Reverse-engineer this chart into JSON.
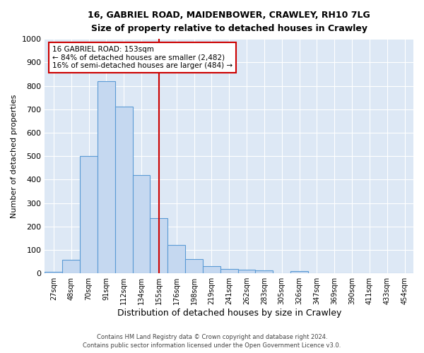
{
  "title1": "16, GABRIEL ROAD, MAIDENBOWER, CRAWLEY, RH10 7LG",
  "title2": "Size of property relative to detached houses in Crawley",
  "xlabel": "Distribution of detached houses by size in Crawley",
  "ylabel": "Number of detached properties",
  "bar_labels": [
    "27sqm",
    "48sqm",
    "70sqm",
    "91sqm",
    "112sqm",
    "134sqm",
    "155sqm",
    "176sqm",
    "198sqm",
    "219sqm",
    "241sqm",
    "262sqm",
    "283sqm",
    "305sqm",
    "326sqm",
    "347sqm",
    "369sqm",
    "390sqm",
    "411sqm",
    "433sqm",
    "454sqm"
  ],
  "bar_values": [
    8,
    58,
    500,
    820,
    710,
    420,
    235,
    120,
    60,
    30,
    18,
    15,
    12,
    0,
    10,
    0,
    0,
    0,
    0,
    0,
    0
  ],
  "bar_color": "#c5d8f0",
  "bar_edge_color": "#5b9bd5",
  "plot_bg_color": "#dde8f5",
  "fig_bg_color": "#ffffff",
  "grid_color": "#ffffff",
  "vline_x_idx": 6,
  "vline_color": "#cc0000",
  "annotation_text": "16 GABRIEL ROAD: 153sqm\n← 84% of detached houses are smaller (2,482)\n16% of semi-detached houses are larger (484) →",
  "annotation_box_facecolor": "#ffffff",
  "annotation_box_edgecolor": "#cc0000",
  "ylim": [
    0,
    1000
  ],
  "yticks": [
    0,
    100,
    200,
    300,
    400,
    500,
    600,
    700,
    800,
    900,
    1000
  ],
  "footer1": "Contains HM Land Registry data © Crown copyright and database right 2024.",
  "footer2": "Contains public sector information licensed under the Open Government Licence v3.0."
}
